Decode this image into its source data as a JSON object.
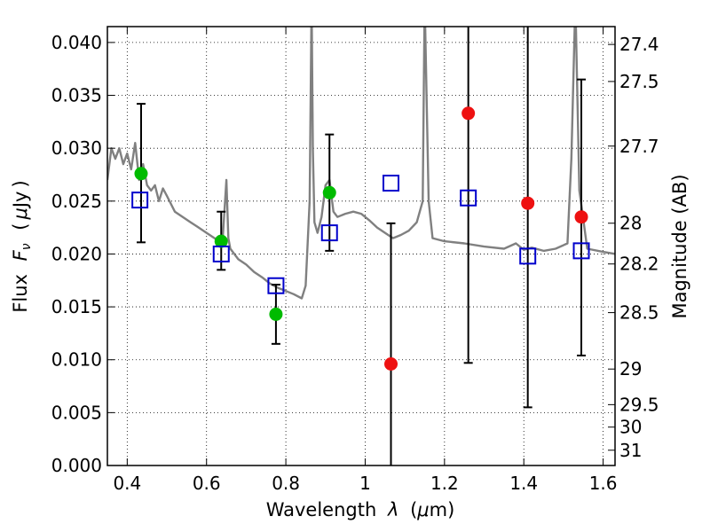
{
  "chart_data": {
    "type": "scatter",
    "xlabel_text": "Wavelength",
    "xlabel_symbol": "λ",
    "xlabel_unit_open": "(",
    "xlabel_unit_mu": "μ",
    "xlabel_unit_rest": "m)",
    "ylabel_text": "Flux",
    "ylabel_symbol": "F",
    "ylabel_symbol_sub": "ν",
    "ylabel_unit_open": "(",
    "ylabel_unit_mu": "μ",
    "ylabel_unit_rest": "Jy",
    "ylabel_unit_close": ")",
    "y2label": "Magnitude (AB)",
    "xlim": [
      0.35,
      1.63
    ],
    "ylim": [
      0.0,
      0.0415
    ],
    "grid": true,
    "x_ticks": [
      0.4,
      0.6,
      0.8,
      1.0,
      1.2,
      1.4,
      1.6
    ],
    "x_tick_labels": [
      "0.4",
      "0.6",
      "0.8",
      "1",
      "1.2",
      "1.4",
      "1.6"
    ],
    "y_ticks": [
      0.0,
      0.005,
      0.01,
      0.015,
      0.02,
      0.025,
      0.03,
      0.035,
      0.04
    ],
    "y_tick_labels": [
      "0.000",
      "0.005",
      "0.010",
      "0.015",
      "0.020",
      "0.025",
      "0.030",
      "0.035",
      "0.040"
    ],
    "mag_ticks": [
      27.4,
      27.5,
      27.7,
      28,
      28.2,
      28.5,
      29,
      29.5,
      30,
      31
    ],
    "mag_tick_labels": [
      "27.4",
      "27.5",
      "27.7",
      "28",
      "28.2",
      "28.5",
      "29",
      "29.5",
      "30",
      "31"
    ],
    "colors": {
      "green": "#00bb00",
      "red": "#ee1111",
      "blue": "#0000cc",
      "spectrum": "#808080"
    },
    "series": [
      {
        "marker": "green-circle",
        "points": [
          {
            "x": 0.435,
            "y": 0.0276,
            "err_lo": 0.0211,
            "err_hi": 0.0342
          },
          {
            "x": 0.637,
            "y": 0.0212,
            "err_lo": 0.0185,
            "err_hi": 0.024
          },
          {
            "x": 0.775,
            "y": 0.0143,
            "err_lo": 0.0115,
            "err_hi": 0.0171
          },
          {
            "x": 0.91,
            "y": 0.0258,
            "err_lo": 0.0203,
            "err_hi": 0.0313
          }
        ]
      },
      {
        "marker": "red-circle",
        "points": [
          {
            "x": 1.065,
            "y": 0.0096,
            "err_lo": 0.0,
            "err_hi": 0.0229
          },
          {
            "x": 1.26,
            "y": 0.0333,
            "err_lo": 0.0097,
            "err_hi": 0.042
          },
          {
            "x": 1.41,
            "y": 0.0248,
            "err_lo": 0.0055,
            "err_hi": 0.042
          },
          {
            "x": 1.545,
            "y": 0.0235,
            "err_lo": 0.0104,
            "err_hi": 0.0365
          }
        ]
      },
      {
        "marker": "blue-open-square",
        "points": [
          {
            "x": 0.432,
            "y": 0.0251
          },
          {
            "x": 0.637,
            "y": 0.02
          },
          {
            "x": 0.775,
            "y": 0.017
          },
          {
            "x": 0.91,
            "y": 0.022
          },
          {
            "x": 1.065,
            "y": 0.0267
          },
          {
            "x": 1.26,
            "y": 0.0253
          },
          {
            "x": 1.41,
            "y": 0.0198
          },
          {
            "x": 1.545,
            "y": 0.0203
          }
        ]
      },
      {
        "marker": "model-spectrum-line",
        "x": [
          0.35,
          0.36,
          0.37,
          0.38,
          0.39,
          0.4,
          0.41,
          0.42,
          0.43,
          0.44,
          0.45,
          0.46,
          0.47,
          0.48,
          0.49,
          0.5,
          0.52,
          0.54,
          0.56,
          0.58,
          0.6,
          0.62,
          0.64,
          0.65,
          0.655,
          0.66,
          0.68,
          0.7,
          0.72,
          0.74,
          0.76,
          0.78,
          0.8,
          0.82,
          0.84,
          0.85,
          0.86,
          0.865,
          0.868,
          0.872,
          0.88,
          0.89,
          0.9,
          0.91,
          0.92,
          0.93,
          0.95,
          0.97,
          0.99,
          1.01,
          1.03,
          1.05,
          1.07,
          1.09,
          1.11,
          1.13,
          1.145,
          1.15,
          1.16,
          1.17,
          1.2,
          1.25,
          1.3,
          1.35,
          1.38,
          1.4,
          1.42,
          1.45,
          1.48,
          1.51,
          1.52,
          1.53,
          1.54,
          1.56,
          1.6,
          1.63
        ],
        "y": [
          0.027,
          0.03,
          0.029,
          0.03,
          0.0285,
          0.0295,
          0.028,
          0.0305,
          0.027,
          0.0285,
          0.0265,
          0.026,
          0.0265,
          0.025,
          0.0262,
          0.0255,
          0.024,
          0.0235,
          0.023,
          0.0225,
          0.022,
          0.0215,
          0.021,
          0.027,
          0.0215,
          0.0205,
          0.0195,
          0.019,
          0.0183,
          0.0178,
          0.0172,
          0.0168,
          0.0165,
          0.0162,
          0.0158,
          0.017,
          0.025,
          0.044,
          0.03,
          0.023,
          0.022,
          0.0235,
          0.0265,
          0.027,
          0.024,
          0.0235,
          0.0238,
          0.024,
          0.0238,
          0.0232,
          0.0225,
          0.022,
          0.0215,
          0.0218,
          0.0222,
          0.023,
          0.025,
          0.044,
          0.025,
          0.0215,
          0.0212,
          0.021,
          0.0207,
          0.0205,
          0.021,
          0.0204,
          0.0206,
          0.0203,
          0.0205,
          0.021,
          0.029,
          0.044,
          0.026,
          0.0205,
          0.0202,
          0.02
        ]
      }
    ]
  }
}
